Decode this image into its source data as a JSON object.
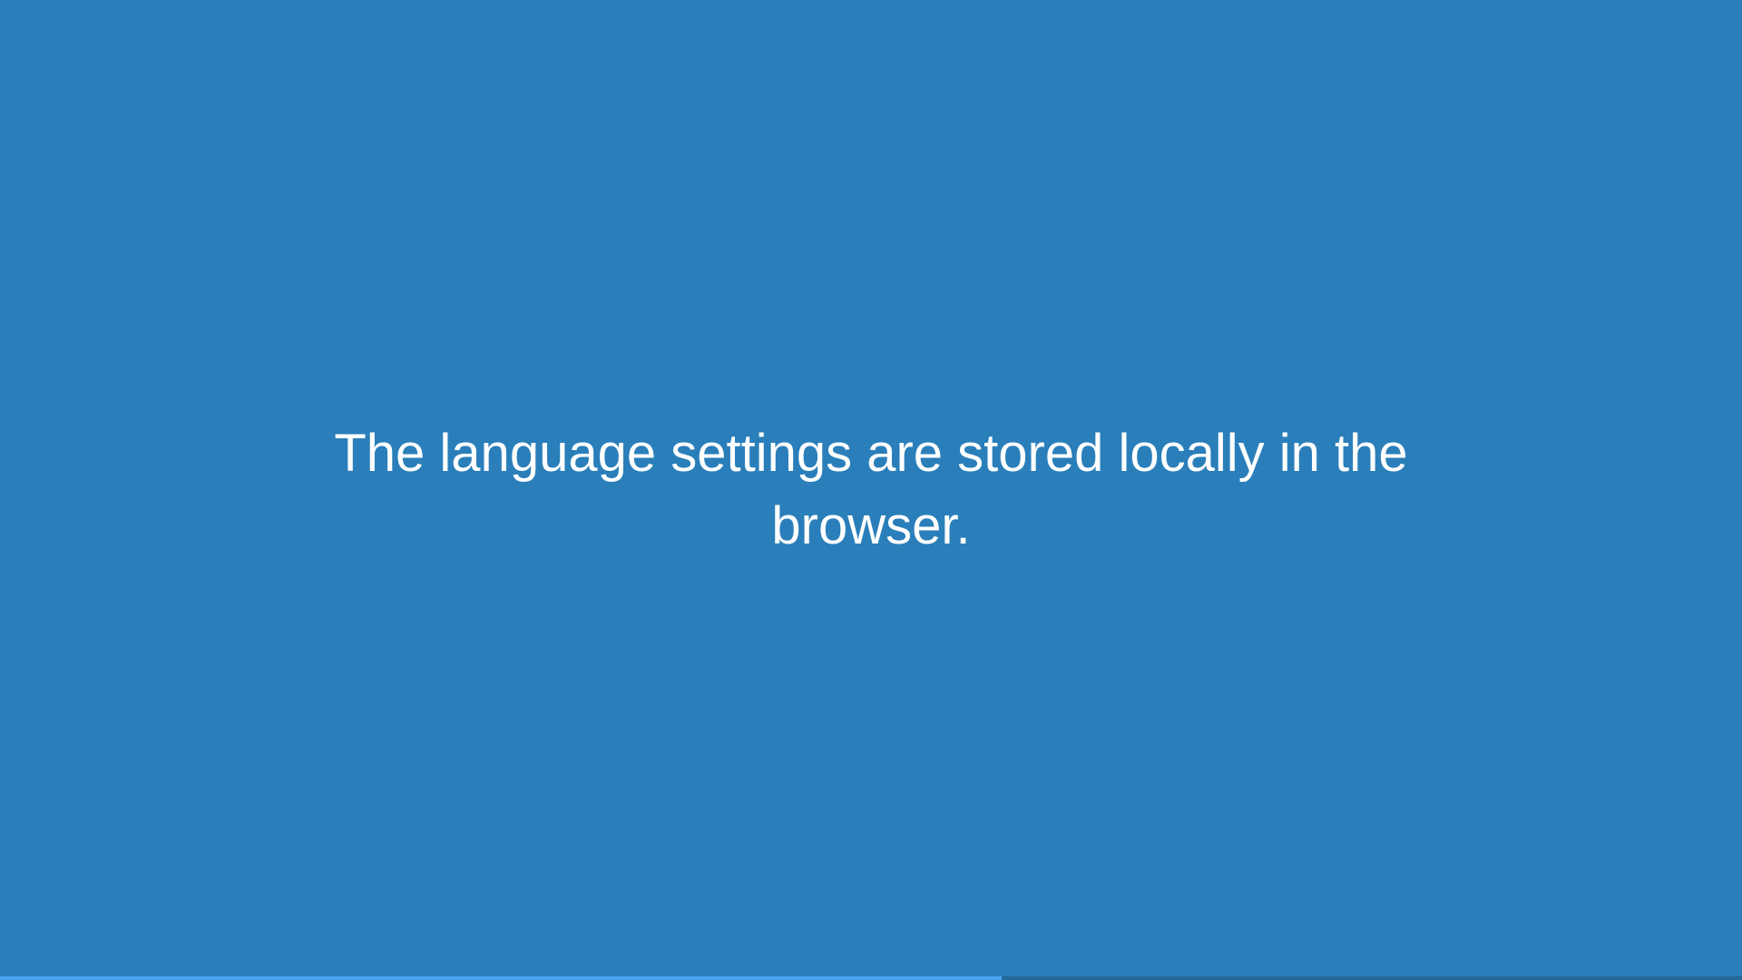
{
  "slide": {
    "message": "The language settings are stored locally in the browser."
  },
  "progress": {
    "fraction": 0.575
  },
  "colors": {
    "background": "#2a7fba",
    "text": "#ffffff",
    "progress_fill": "#4aa3ef",
    "progress_track": "#23699a"
  }
}
